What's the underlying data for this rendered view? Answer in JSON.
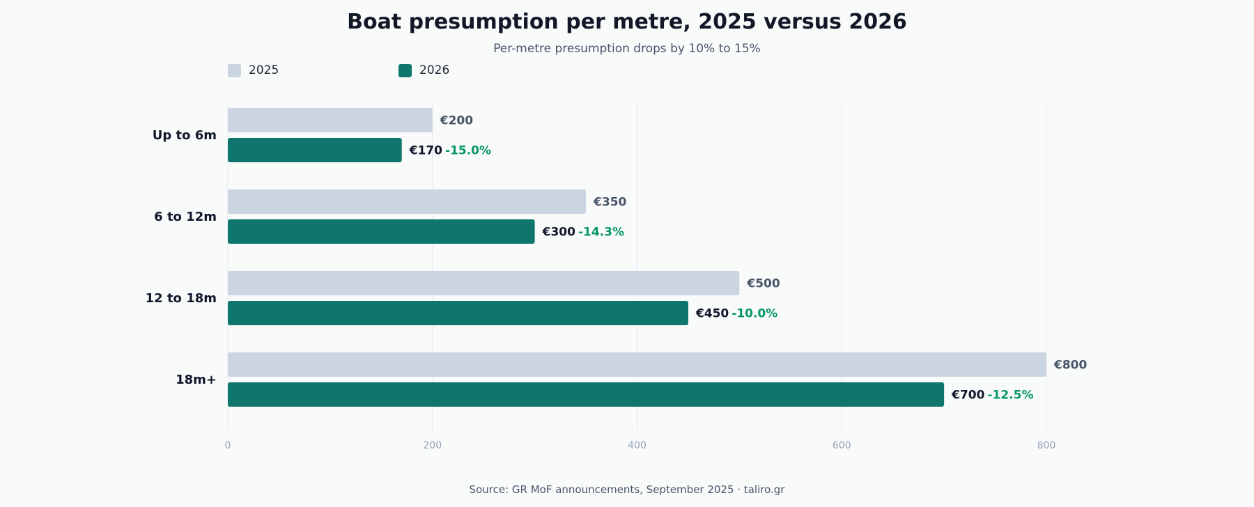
{
  "chart_data": {
    "type": "bar",
    "orientation": "horizontal",
    "title": "Boat presumption per metre, 2025 versus 2026",
    "subtitle": "Per-metre presumption drops by 10% to 15%",
    "source": "Source: GR MoF announcements, September 2025 · taliro.gr",
    "categories": [
      "Up to 6m",
      "6 to 12m",
      "12 to 18m",
      "18m+"
    ],
    "series": [
      {
        "name": "2025",
        "color": "#cbd5e1",
        "values": [
          200,
          350,
          500,
          800
        ],
        "labels": [
          "€200",
          "€350",
          "€500",
          "€800"
        ]
      },
      {
        "name": "2026",
        "color": "#0f766e",
        "values": [
          170,
          300,
          450,
          700
        ],
        "labels": [
          "€170",
          "€300",
          "€450",
          "€700"
        ],
        "change_labels": [
          "-15.0%",
          "-14.3%",
          "-10.0%",
          "-12.5%"
        ]
      }
    ],
    "xlim": [
      0,
      800
    ],
    "xticks": [
      0,
      200,
      400,
      600,
      800
    ],
    "xtick_labels": [
      "0",
      "200",
      "400",
      "600",
      "800"
    ],
    "grid": true,
    "legend_position": "top-left",
    "colors": {
      "series_2025": "#cbd5e1",
      "series_2026": "#0f766e",
      "change_text": "#059669",
      "label_2025_text": "#475569",
      "label_2026_text": "#0f172a",
      "tick_text": "#94a3b8",
      "grid": "#e2e8f0"
    }
  }
}
